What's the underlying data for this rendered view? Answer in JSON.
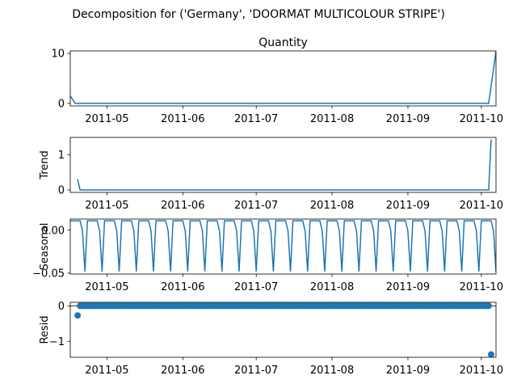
{
  "figure": {
    "suptitle": "Decomposition for ('Germany', 'DOORMAT MULTICOLOUR STRIPE')"
  },
  "chart_data": [
    {
      "type": "line",
      "panel": "observed",
      "title": "Quantity",
      "ylabel": "",
      "xlim": [
        "2011-04-16",
        "2011-10-07"
      ],
      "ylim": [
        -0.5,
        10.5
      ],
      "yticks": [
        {
          "v": 0,
          "label": "0"
        },
        {
          "v": 10,
          "label": "10"
        }
      ],
      "xticks": [
        "2011-05",
        "2011-06",
        "2011-07",
        "2011-08",
        "2011-09",
        "2011-10"
      ],
      "color": "#1f77b4",
      "x": [
        "2011-04-16",
        "2011-04-18",
        "2011-10-04",
        "2011-10-07"
      ],
      "y": [
        1.5,
        0,
        0,
        10.4
      ],
      "grid": false,
      "legend": "none"
    },
    {
      "type": "line",
      "panel": "trend",
      "title": "",
      "ylabel": "Trend",
      "xlim": [
        "2011-04-16",
        "2011-10-07"
      ],
      "ylim": [
        -0.07,
        1.5
      ],
      "yticks": [
        {
          "v": 0,
          "label": "0"
        },
        {
          "v": 1,
          "label": "1"
        }
      ],
      "xticks": [
        "2011-05",
        "2011-06",
        "2011-07",
        "2011-08",
        "2011-09",
        "2011-10"
      ],
      "color": "#1f77b4",
      "x": [
        "2011-04-19",
        "2011-04-20",
        "2011-10-04",
        "2011-10-05"
      ],
      "y": [
        0.3,
        0,
        0,
        1.44
      ],
      "grid": false,
      "legend": "none"
    },
    {
      "type": "line",
      "panel": "seasonal",
      "title": "",
      "ylabel": "Seasonal",
      "xlim": [
        "2011-04-16",
        "2011-10-07"
      ],
      "ylim": [
        -0.051,
        0.013
      ],
      "yticks": [
        {
          "v": 0,
          "label": "0.00"
        },
        {
          "v": -0.05,
          "label": "−0.05"
        }
      ],
      "xticks": [
        "2011-05",
        "2011-06",
        "2011-07",
        "2011-08",
        "2011-09",
        "2011-10"
      ],
      "color": "#1f77b4",
      "period_days": 7,
      "period_start": "2011-04-16",
      "pattern": [
        0.011,
        0.011,
        0.011,
        0.011,
        0.011,
        -0.001,
        -0.048
      ],
      "grid": false,
      "legend": "none"
    },
    {
      "type": "scatter",
      "panel": "resid",
      "title": "",
      "ylabel": "Resid",
      "xlim": [
        "2011-04-16",
        "2011-10-07"
      ],
      "ylim": [
        -1.45,
        0.1
      ],
      "yticks": [
        {
          "v": 0,
          "label": "0"
        },
        {
          "v": -1,
          "label": "−1"
        }
      ],
      "xticks": [
        "2011-05",
        "2011-06",
        "2011-07",
        "2011-08",
        "2011-09",
        "2011-10"
      ],
      "color": "#1f77b4",
      "zero_line": true,
      "dense_range": [
        "2011-04-20",
        "2011-10-04"
      ],
      "dense_value": 0,
      "points": [
        {
          "x": "2011-04-19",
          "y": -0.27
        },
        {
          "x": "2011-10-05",
          "y": -1.37
        }
      ],
      "grid": false,
      "legend": "none"
    }
  ]
}
